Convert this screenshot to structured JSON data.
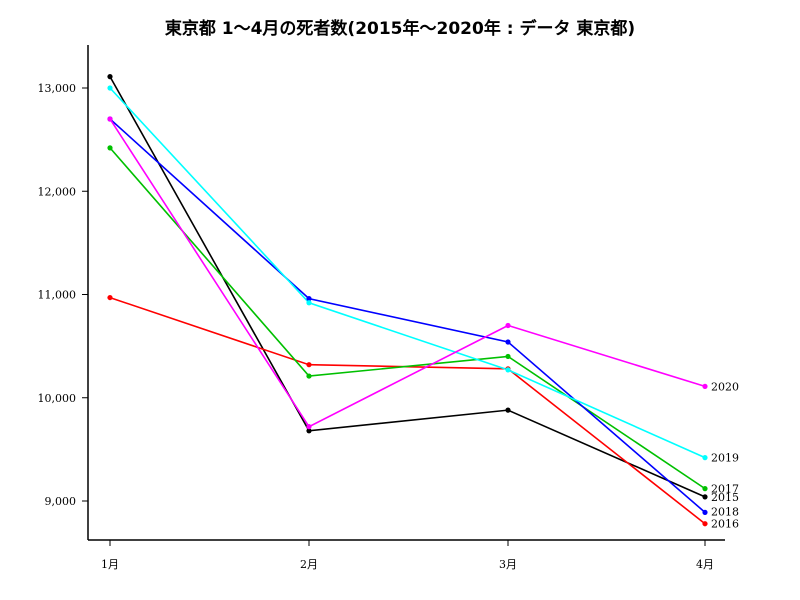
{
  "chart_data": {
    "type": "line",
    "title": "東京都 1〜4月の死者数(2015年〜2020年 : データ 東京都)",
    "xlabel": "",
    "ylabel": "",
    "categories": [
      "1月",
      "2月",
      "3月",
      "4月"
    ],
    "ylim": [
      8600,
      13250
    ],
    "yticks": [
      9000,
      10000,
      11000,
      12000,
      13000
    ],
    "ytick_labels": [
      "9,000",
      "10,000",
      "11,000",
      "12,000",
      "13,000"
    ],
    "grid": false,
    "legend": "end-of-line labels",
    "series": [
      {
        "name": "2015",
        "color": "#000000",
        "values": [
          13110,
          9680,
          9880,
          9040
        ]
      },
      {
        "name": "2016",
        "color": "#ff0000",
        "values": [
          10970,
          10320,
          10280,
          8780
        ]
      },
      {
        "name": "2017",
        "color": "#00c000",
        "values": [
          12420,
          10210,
          10400,
          9120
        ]
      },
      {
        "name": "2018",
        "color": "#0000ff",
        "values": [
          12700,
          10960,
          10540,
          8890
        ]
      },
      {
        "name": "2019",
        "color": "#00ffff",
        "values": [
          13000,
          10920,
          10270,
          9420
        ]
      },
      {
        "name": "2020",
        "color": "#ff00ff",
        "values": [
          12700,
          9720,
          10700,
          10110
        ]
      }
    ]
  }
}
